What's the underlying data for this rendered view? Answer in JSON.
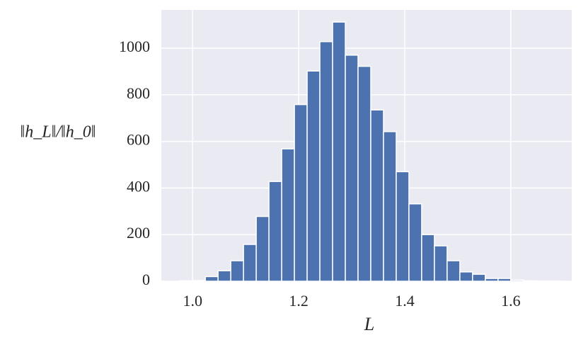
{
  "chart_data": {
    "type": "histogram",
    "xlabel": "L",
    "ylabel": "‖h_L‖/‖h_0‖",
    "bins": [
      0.976,
      1.0,
      1.024,
      1.048,
      1.072,
      1.096,
      1.12,
      1.144,
      1.168,
      1.192,
      1.216,
      1.24,
      1.264,
      1.288,
      1.312,
      1.336,
      1.36,
      1.384,
      1.408,
      1.432,
      1.456,
      1.48,
      1.504,
      1.528,
      1.552,
      1.576,
      1.6,
      1.624,
      1.648,
      1.672,
      1.696
    ],
    "counts": [
      2,
      3,
      20,
      45,
      88,
      158,
      278,
      428,
      568,
      758,
      902,
      1028,
      1112,
      970,
      922,
      735,
      642,
      470,
      332,
      200,
      152,
      88,
      40,
      30,
      12,
      12,
      5,
      2,
      1,
      1
    ],
    "color": "#4c72b0",
    "xlim": [
      0.941,
      1.715
    ],
    "ylim": [
      0,
      1164
    ],
    "xticks": [
      {
        "value": 1,
        "label": "1.0"
      },
      1.2,
      1.4,
      1.6
    ],
    "yticks": [
      0,
      200,
      400,
      600,
      800,
      1000
    ],
    "grid": true
  }
}
